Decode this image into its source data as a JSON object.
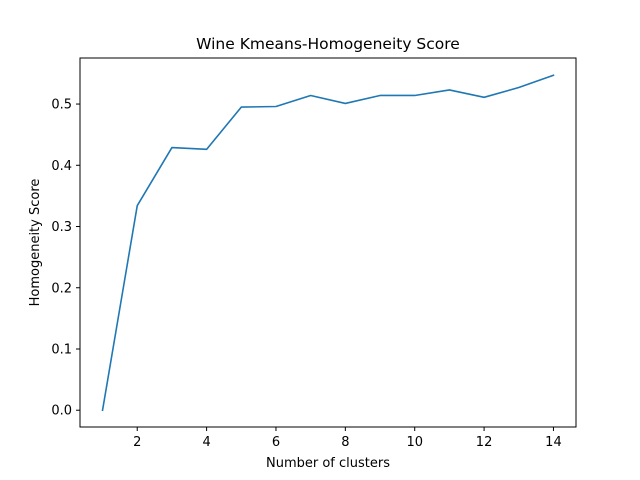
{
  "chart_data": {
    "type": "line",
    "title": "Wine Kmeans-Homogeneity Score",
    "xlabel": "Number of clusters",
    "ylabel": "Homogeneity Score",
    "xlim": [
      0.35,
      14.65
    ],
    "ylim": [
      -0.0274,
      0.5752
    ],
    "xticks": [
      2,
      4,
      6,
      8,
      10,
      12,
      14
    ],
    "xtick_labels": [
      "2",
      "4",
      "6",
      "8",
      "10",
      "12",
      "14"
    ],
    "yticks": [
      0.0,
      0.1,
      0.2,
      0.3,
      0.4,
      0.5
    ],
    "ytick_labels": [
      "0.0",
      "0.1",
      "0.2",
      "0.3",
      "0.4",
      "0.5"
    ],
    "grid": false,
    "legend": "none",
    "series": [
      {
        "color": "#1f77b4",
        "x": [
          1,
          2,
          3,
          4,
          5,
          6,
          7,
          8,
          9,
          10,
          11,
          12,
          13,
          14
        ],
        "y": [
          0.0,
          0.334,
          0.429,
          0.426,
          0.495,
          0.496,
          0.514,
          0.501,
          0.514,
          0.514,
          0.523,
          0.511,
          0.527,
          0.547
        ]
      }
    ]
  }
}
